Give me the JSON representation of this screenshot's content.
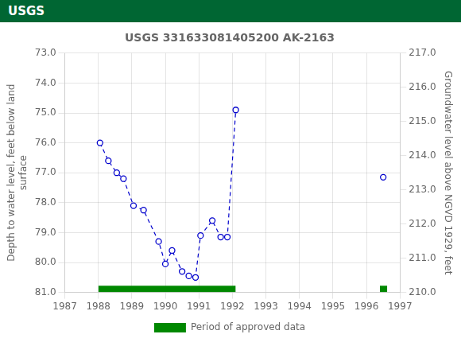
{
  "chart_data": {
    "type": "line",
    "title": "USGS 331633081405200 AK-2163",
    "annotations": [
      "USGS"
    ],
    "ylabel": "Depth to water level, feet below land\nsurface",
    "y2label": "Groundwater level above NGVD 1929, feet",
    "xlim": [
      1987,
      1997
    ],
    "xticks": [
      1987,
      1988,
      1989,
      1990,
      1991,
      1992,
      1993,
      1994,
      1995,
      1996,
      1997
    ],
    "ylim": [
      81.0,
      73.0
    ],
    "yticks": [
      {
        "value": 73.0,
        "label": "73.0"
      },
      {
        "value": 74.0,
        "label": "74.0"
      },
      {
        "value": 75.0,
        "label": "75.0"
      },
      {
        "value": 76.0,
        "label": "76.0"
      },
      {
        "value": 77.0,
        "label": "77.0"
      },
      {
        "value": 78.0,
        "label": "78.0"
      },
      {
        "value": 79.0,
        "label": "79.0"
      },
      {
        "value": 80.0,
        "label": "80.0"
      },
      {
        "value": 81.0,
        "label": "81.0"
      }
    ],
    "y2lim": [
      210.0,
      217.0
    ],
    "y2ticks": [
      {
        "value": 217.0,
        "label": "217.0"
      },
      {
        "value": 216.0,
        "label": "216.0"
      },
      {
        "value": 215.0,
        "label": "215.0"
      },
      {
        "value": 214.0,
        "label": "214.0"
      },
      {
        "value": 213.0,
        "label": "213.0"
      },
      {
        "value": 212.0,
        "label": "212.0"
      },
      {
        "value": 211.0,
        "label": "211.0"
      },
      {
        "value": 210.0,
        "label": "210.0"
      }
    ],
    "grid": true,
    "legend": "bottom",
    "series": [
      {
        "type": "line",
        "color": "#0000cc",
        "line_style": "dashed",
        "marker": "circle",
        "x": [
          1988.05,
          1988.3,
          1988.55,
          1988.75,
          1989.05,
          1989.35,
          1989.8,
          1990.0,
          1990.2,
          1990.5,
          1990.7,
          1990.9,
          1991.05,
          1991.4,
          1991.65,
          1991.85,
          1992.1
        ],
        "values": [
          76.0,
          76.6,
          77.0,
          77.2,
          78.1,
          78.25,
          79.3,
          80.05,
          79.6,
          80.3,
          80.45,
          80.5,
          79.1,
          78.6,
          79.15,
          79.15,
          74.9
        ]
      },
      {
        "type": "scatter",
        "color": "#0000cc",
        "marker": "circle",
        "x": [
          1996.5
        ],
        "values": [
          77.15
        ]
      },
      {
        "name": "Period of approved data",
        "type": "span",
        "color": "#008800",
        "x_ranges": [
          [
            1988.0,
            1992.1
          ],
          [
            1996.4,
            1996.62
          ]
        ],
        "y_range": [
          80.78,
          81.0
        ]
      }
    ]
  }
}
